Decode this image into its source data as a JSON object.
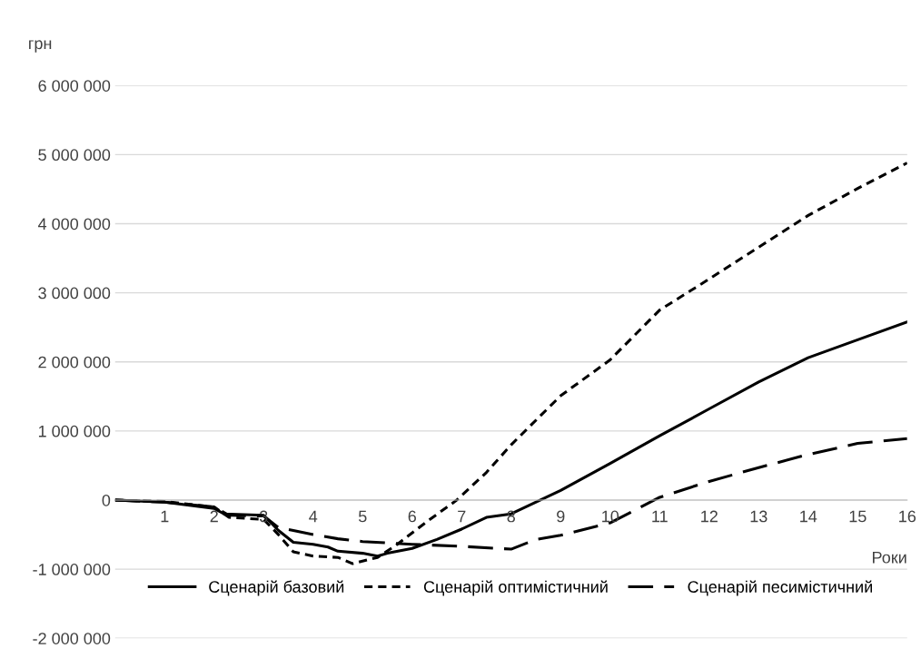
{
  "chart_data": {
    "type": "line",
    "ylabel": "грн",
    "xlabel": "Роки",
    "xlim": [
      0,
      16
    ],
    "xticks": [
      1,
      2,
      3,
      4,
      5,
      6,
      7,
      8,
      9,
      10,
      11,
      12,
      13,
      14,
      15,
      16
    ],
    "ylim": [
      -2000000,
      6000000
    ],
    "yticks": [
      {
        "value": -2000000,
        "label": "-2 000 000"
      },
      {
        "value": -1000000,
        "label": "-1 000 000"
      },
      {
        "value": 0,
        "label": "0"
      },
      {
        "value": 1000000,
        "label": "1 000 000"
      },
      {
        "value": 2000000,
        "label": "2 000 000"
      },
      {
        "value": 3000000,
        "label": "3 000 000"
      },
      {
        "value": 4000000,
        "label": "4 000 000"
      },
      {
        "value": 5000000,
        "label": "5 000 000"
      },
      {
        "value": 6000000,
        "label": "6 000 000"
      }
    ],
    "grid": "y",
    "legend": "bottom",
    "marker": "none",
    "series": [
      {
        "name": "Сценарій базовий",
        "color": "#000000",
        "line_style": "solid",
        "x": [
          0,
          1,
          2,
          2.2,
          3,
          3.3,
          3.6,
          4,
          4.3,
          4.5,
          5,
          5.3,
          5.5,
          6,
          6.5,
          7,
          7.5,
          8,
          9,
          10,
          11,
          12,
          13,
          14,
          15,
          16
        ],
        "values": [
          0,
          -30000,
          -120000,
          -200000,
          -220000,
          -440000,
          -610000,
          -640000,
          -680000,
          -740000,
          -770000,
          -810000,
          -770000,
          -700000,
          -570000,
          -420000,
          -250000,
          -200000,
          140000,
          530000,
          930000,
          1320000,
          1710000,
          2060000,
          2320000,
          2580000
        ]
      },
      {
        "name": "Сценарій оптимістичний",
        "color": "#000000",
        "line_style": "dotted",
        "x": [
          0,
          1,
          2,
          2.3,
          3,
          3.3,
          3.6,
          4,
          4.5,
          4.8,
          5.3,
          5.7,
          6.3,
          6.9,
          7.5,
          8,
          9,
          10,
          11,
          12,
          13,
          14,
          15,
          16
        ],
        "values": [
          0,
          -20000,
          -100000,
          -250000,
          -280000,
          -500000,
          -750000,
          -810000,
          -830000,
          -920000,
          -830000,
          -640000,
          -310000,
          0,
          400000,
          800000,
          1510000,
          2030000,
          2750000,
          3200000,
          3660000,
          4120000,
          4510000,
          4880000
        ]
      },
      {
        "name": "Сценарій песимістичний",
        "color": "#000000",
        "line_style": "dashed",
        "x": [
          0,
          1,
          2,
          2.3,
          3,
          3.3,
          3.6,
          4,
          4.5,
          5,
          5.5,
          6,
          7,
          8,
          8.5,
          9,
          10,
          11,
          12,
          13,
          14,
          15,
          16
        ],
        "values": [
          0,
          -30000,
          -100000,
          -220000,
          -230000,
          -400000,
          -440000,
          -500000,
          -560000,
          -600000,
          -620000,
          -640000,
          -670000,
          -710000,
          -570000,
          -510000,
          -330000,
          40000,
          270000,
          470000,
          660000,
          820000,
          890000
        ]
      }
    ]
  }
}
